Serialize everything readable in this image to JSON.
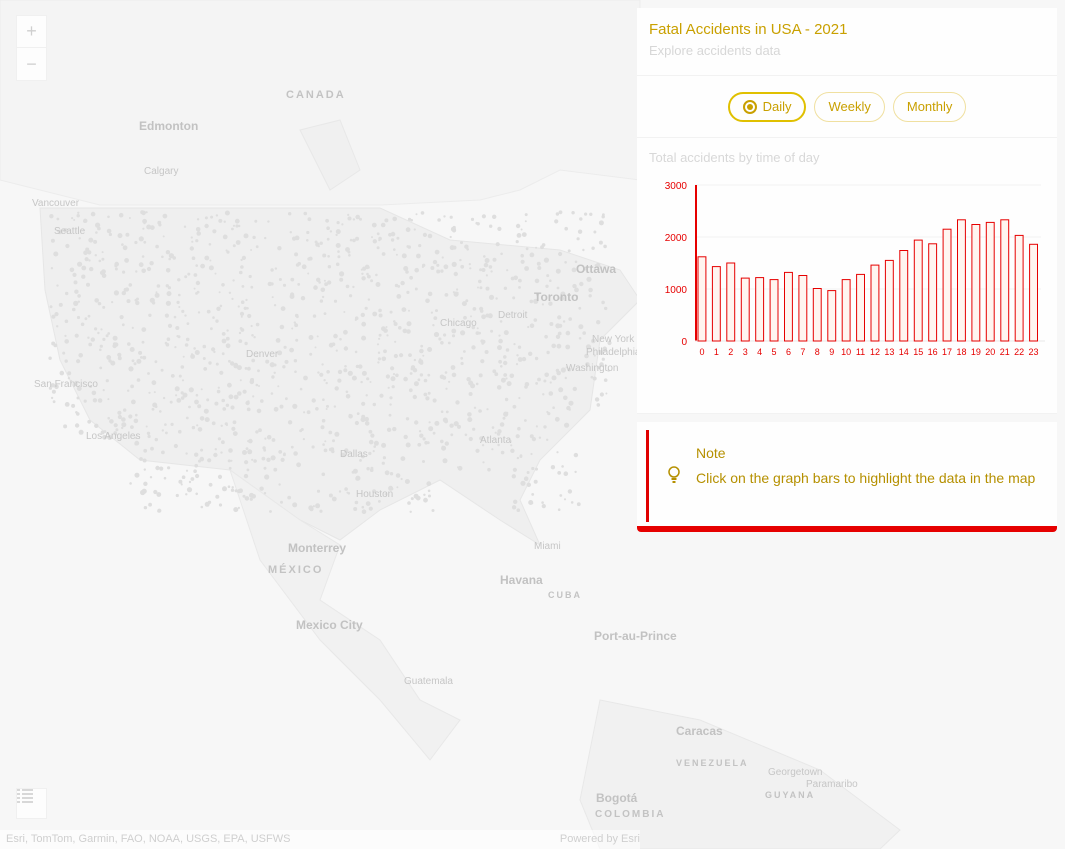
{
  "panel": {
    "title": "Fatal Accidents in USA - 2021",
    "subtitle": "Explore accidents data",
    "toggle": [
      {
        "label": "Daily",
        "selected": true
      },
      {
        "label": "Weekly",
        "selected": false
      },
      {
        "label": "Monthly",
        "selected": false
      }
    ],
    "chart_title": "Total accidents by time of day",
    "note_title": "Note",
    "note_text": "Click on the graph bars to highlight the data in the map"
  },
  "map": {
    "zoom_in": "+",
    "zoom_out": "−",
    "attribution": "Esri, TomTom, Garmin, FAO, NOAA, USGS, EPA, USFWS",
    "powered_by": "Powered by Esri",
    "labels": {
      "canada": "CANADA",
      "mexico": "MÉXICO",
      "cuba": "CUBA",
      "venezuela": "VENEZUELA",
      "guyana": "GUYANA",
      "colombia": "COLOMBIA",
      "edmonton": "Edmonton",
      "calgary": "Calgary",
      "vancouver": "Vancouver",
      "seattle": "Seattle",
      "ottawa": "Ottawa",
      "toronto": "Toronto",
      "detroit": "Detroit",
      "chicago": "Chicago",
      "new_york": "New York",
      "philadelphia": "Philadelphia",
      "washington": "Washington",
      "san_francisco": "San Francisco",
      "los_angeles": "Los Angeles",
      "denver": "Denver",
      "dallas": "Dallas",
      "houston": "Houston",
      "atlanta": "Atlanta",
      "miami": "Miami",
      "monterrey": "Monterrey",
      "mexico_city": "Mexico City",
      "havana": "Havana",
      "port_au_prince": "Port-au-Prince",
      "guatemala": "Guatemala",
      "caracas": "Caracas",
      "georgetown": "Georgetown",
      "paramaribo": "Paramaribo",
      "bogota": "Bogotá"
    }
  },
  "colors": {
    "bar": "#e60000",
    "accent": "#c9a000",
    "note_border": "#e60000"
  },
  "chart_data": {
    "type": "bar",
    "categories": [
      "0",
      "1",
      "2",
      "3",
      "4",
      "5",
      "6",
      "7",
      "8",
      "9",
      "10",
      "11",
      "12",
      "13",
      "14",
      "15",
      "16",
      "17",
      "18",
      "19",
      "20",
      "21",
      "22",
      "23"
    ],
    "values": [
      1620,
      1430,
      1500,
      1210,
      1220,
      1180,
      1320,
      1260,
      1010,
      970,
      1180,
      1280,
      1460,
      1550,
      1740,
      1940,
      1870,
      2150,
      2330,
      2240,
      2280,
      2330,
      2030,
      1860
    ],
    "ylabel": "",
    "xlabel": "",
    "yticks": [
      "3000",
      "2000",
      "1000",
      "0"
    ],
    "ylim": [
      0,
      3000
    ]
  }
}
